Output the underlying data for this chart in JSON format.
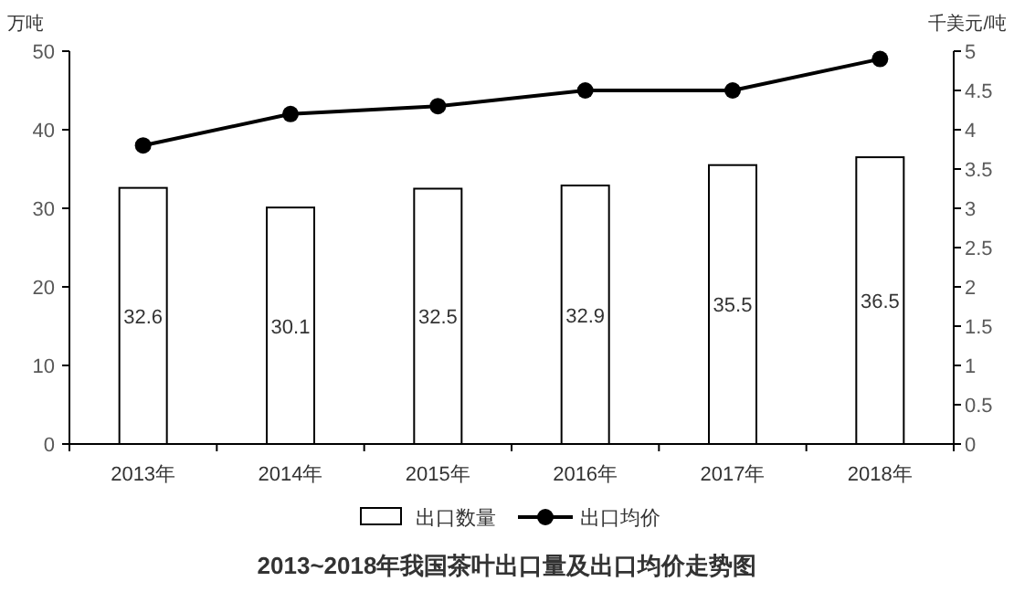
{
  "chart_data": {
    "type": "bar",
    "title": "2013~2018年我国茶叶出口量及出口均价走势图",
    "ylabel": "万吨",
    "y2label": "千美元/吨",
    "categories": [
      "2013年",
      "2014年",
      "2015年",
      "2016年",
      "2017年",
      "2018年"
    ],
    "ylim": [
      0,
      50
    ],
    "yticks": [
      0,
      10,
      20,
      30,
      40,
      50
    ],
    "y2lim": [
      0,
      5
    ],
    "y2ticks": [
      0,
      0.5,
      1,
      1.5,
      2,
      2.5,
      3,
      3.5,
      4,
      4.5,
      5
    ],
    "series": [
      {
        "name": "出口数量",
        "color": "#ffffff",
        "values": [
          32.6,
          30.1,
          32.5,
          32.9,
          35.5,
          36.5
        ],
        "value_labels": [
          "32.6",
          "30.1",
          "32.5",
          "32.9",
          "35.5",
          "36.5"
        ]
      },
      {
        "name": "出口均价",
        "type": "line",
        "axis": "y2",
        "color": "#000000",
        "values": [
          3.8,
          4.2,
          4.3,
          4.5,
          4.5,
          4.9
        ]
      }
    ],
    "marker": "circle",
    "legend": "bottom"
  }
}
